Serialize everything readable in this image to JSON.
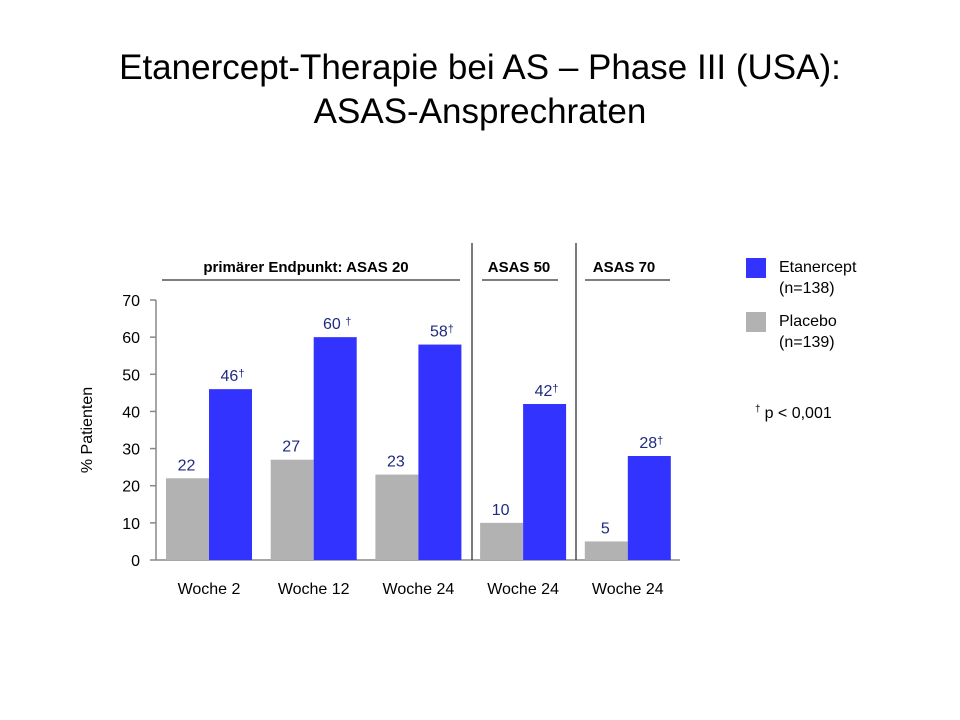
{
  "slide": {
    "title_line1": "Etanercept-Therapie bei AS – Phase III (USA):",
    "title_line2": "ASAS-Ansprechraten"
  },
  "footnote": {
    "dagger": "†",
    "text": "p < 0,001"
  },
  "chart_data": {
    "type": "bar",
    "ylabel": "% Patienten",
    "ylim": [
      0,
      70
    ],
    "yticks": [
      0,
      10,
      20,
      30,
      40,
      50,
      60,
      70
    ],
    "categories": [
      "Woche 2",
      "Woche 12",
      "Woche 24",
      "Woche 24",
      "Woche 24"
    ],
    "groups": [
      {
        "label": "primärer Endpunkt: ASAS 20",
        "categories": [
          0,
          1,
          2
        ]
      },
      {
        "label": "ASAS 50",
        "categories": [
          3
        ]
      },
      {
        "label": "ASAS 70",
        "categories": [
          4
        ]
      }
    ],
    "series": [
      {
        "name": "Placebo",
        "legend_label": "Placebo",
        "legend_n": "(n=139)",
        "color": "#b2b2b2",
        "values": [
          22,
          27,
          23,
          10,
          5
        ],
        "data_labels": [
          "22",
          "27",
          "23",
          "10",
          "5"
        ]
      },
      {
        "name": "Etanercept",
        "legend_label": "Etanercept",
        "legend_n": "(n=138)",
        "color": "#3333ff",
        "values": [
          46,
          60,
          58,
          42,
          28
        ],
        "data_labels": [
          "46†",
          "60 †",
          "58†",
          "42†",
          "28†"
        ]
      }
    ],
    "label_color": "#1f2a80",
    "grid": false,
    "legend": "right"
  }
}
